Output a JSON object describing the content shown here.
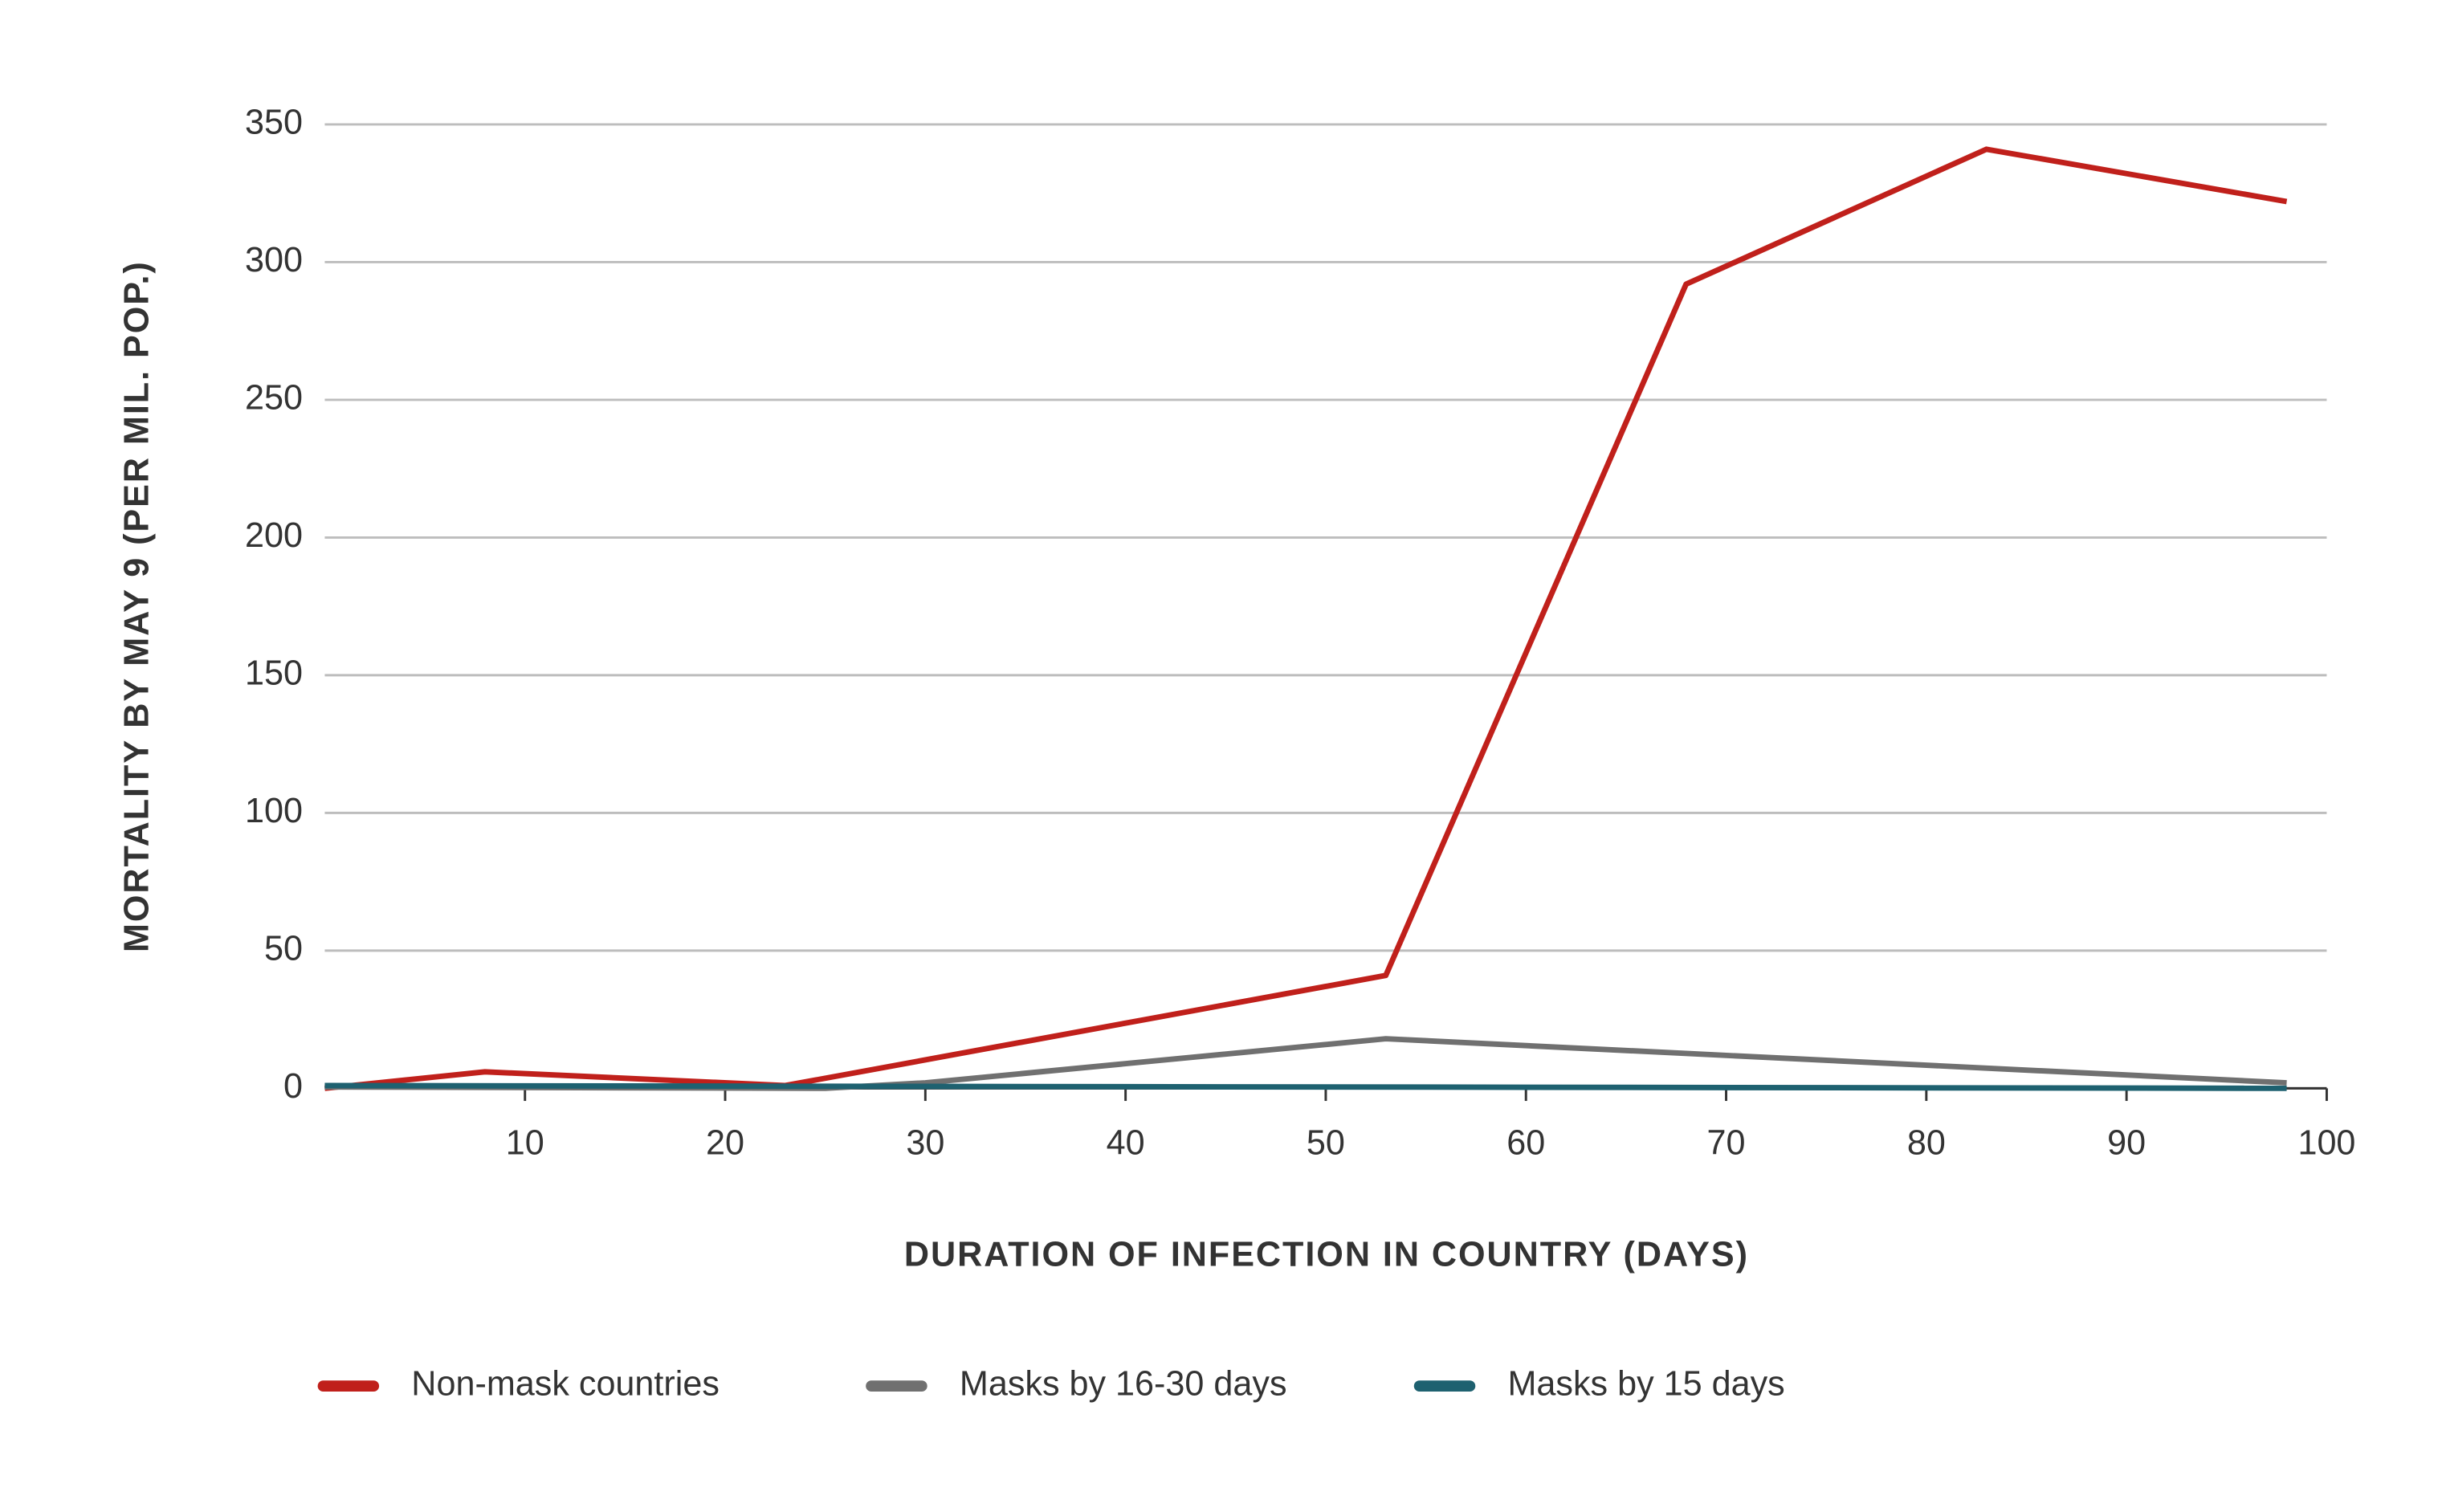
{
  "chart_data": {
    "type": "line",
    "x_label": "DURATION OF INFECTION IN COUNTRY (DAYS)",
    "y_label": "MORTALITY BY MAY 9 (PER MIL. POP.)",
    "xlim": [
      0,
      100
    ],
    "xticks": [
      10,
      20,
      30,
      40,
      50,
      60,
      70,
      80,
      90,
      100
    ],
    "ylim": [
      0,
      350
    ],
    "yticks": [
      0,
      50,
      100,
      150,
      200,
      250,
      300,
      350
    ],
    "grid": true,
    "legend": "bottom",
    "series": [
      {
        "name": "Non-mask countries",
        "color": "#c0201b",
        "x": [
          0,
          8,
          23,
          53,
          68,
          83,
          98
        ],
        "values": [
          0,
          6,
          1,
          41,
          292,
          341,
          322
        ]
      },
      {
        "name": "Masks by 16-30 days",
        "color": "#707070",
        "x": [
          0,
          25,
          30,
          53,
          98
        ],
        "values": [
          0.5,
          0,
          2,
          18,
          2
        ]
      },
      {
        "name": "Masks by 15 days",
        "color": "#1e6170",
        "x": [
          0,
          98
        ],
        "values": [
          1,
          0
        ]
      }
    ]
  }
}
